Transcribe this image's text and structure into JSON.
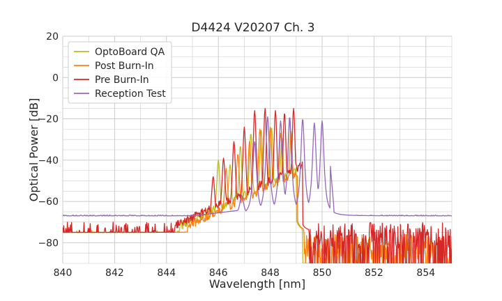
{
  "chart_data": {
    "type": "line",
    "title": "D4424 V20207 Ch. 3",
    "xlabel": "Wavelength [nm]",
    "ylabel": "Optical Power [dB]",
    "xlim": [
      840,
      855
    ],
    "ylim": [
      -90,
      20
    ],
    "xticks": [
      840,
      842,
      844,
      846,
      848,
      850,
      852,
      854
    ],
    "yticks": [
      -80,
      -60,
      -40,
      -20,
      0,
      20
    ],
    "xtick_labels": [
      "840",
      "842",
      "844",
      "846",
      "848",
      "850",
      "852",
      "854"
    ],
    "ytick_labels": [
      "−80",
      "−60",
      "−40",
      "−20",
      "0",
      "20"
    ],
    "grid": true,
    "legend_position": "top-left",
    "series": [
      {
        "name": "OptoBoard QA",
        "color": "#bcbd22",
        "noise_floor": {
          "x_range": [
            840,
            846
          ],
          "level_min": -88,
          "level_max": -74
        },
        "peaks": [
          {
            "x": 846.0,
            "y": -40
          },
          {
            "x": 846.45,
            "y": -42
          },
          {
            "x": 846.85,
            "y": -33
          },
          {
            "x": 847.25,
            "y": -27
          },
          {
            "x": 847.65,
            "y": -25
          },
          {
            "x": 848.05,
            "y": -24
          },
          {
            "x": 848.45,
            "y": -29
          },
          {
            "x": 848.75,
            "y": -21
          }
        ],
        "edge_down": 849.0
      },
      {
        "name": "Post Burn-In",
        "color": "#ff7f0e",
        "noise_floor": {
          "x_range": [
            840,
            855
          ],
          "level_min": -88,
          "level_max": -76
        },
        "peaks": [
          {
            "x": 846.3,
            "y": -44
          },
          {
            "x": 846.75,
            "y": -37
          },
          {
            "x": 847.2,
            "y": -31
          },
          {
            "x": 847.6,
            "y": -25
          },
          {
            "x": 848.0,
            "y": -24
          },
          {
            "x": 848.4,
            "y": -27
          },
          {
            "x": 848.8,
            "y": -26
          }
        ],
        "edge_down": 849.05
      },
      {
        "name": "Pre Burn-In",
        "color": "#d62728",
        "noise_floor": {
          "x_range": [
            840,
            855
          ],
          "level_min": -83,
          "level_max": -70
        },
        "peaks": [
          {
            "x": 845.8,
            "y": -48
          },
          {
            "x": 846.2,
            "y": -39
          },
          {
            "x": 846.6,
            "y": -31
          },
          {
            "x": 847.0,
            "y": -24
          },
          {
            "x": 847.4,
            "y": -16
          },
          {
            "x": 847.8,
            "y": -15
          },
          {
            "x": 848.2,
            "y": -16
          },
          {
            "x": 848.55,
            "y": -17
          },
          {
            "x": 848.9,
            "y": -15
          }
        ],
        "edge_down": 849.25
      },
      {
        "name": "Reception Test",
        "color": "#9467bd",
        "baseline": -67,
        "peaks": [
          {
            "x": 846.9,
            "y": -57
          },
          {
            "x": 847.4,
            "y": -31
          },
          {
            "x": 847.9,
            "y": -19
          },
          {
            "x": 848.4,
            "y": -21
          },
          {
            "x": 848.75,
            "y": -19
          },
          {
            "x": 849.25,
            "y": -20
          },
          {
            "x": 849.7,
            "y": -22
          },
          {
            "x": 850.0,
            "y": -21
          }
        ],
        "edge_down": 850.3
      }
    ]
  }
}
